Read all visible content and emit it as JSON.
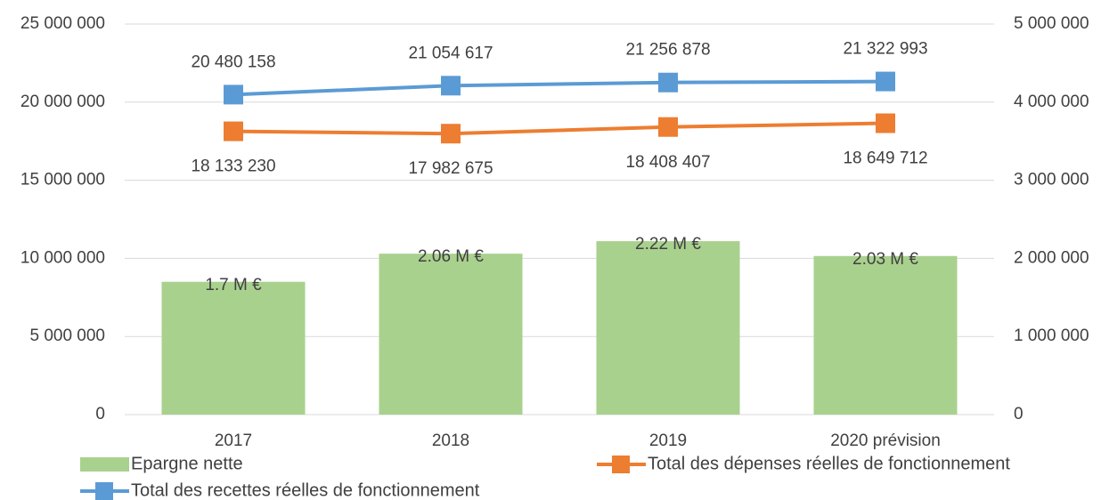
{
  "chart_data": {
    "type": "combo",
    "categories": [
      "2017",
      "2018",
      "2019",
      "2020 prévision"
    ],
    "series": [
      {
        "name": "Epargne nette",
        "type": "bar",
        "axis": "y2",
        "color": "#a9d18e",
        "values": [
          1700000,
          2060000,
          2220000,
          2030000
        ],
        "value_labels": [
          "1.7 M €",
          "2.06 M €",
          "2.22 M €",
          "2.03 M €"
        ]
      },
      {
        "name": "Total des dépenses réelles de fonctionnement",
        "type": "line",
        "axis": "y",
        "color": "#ed7d31",
        "label_position": "below",
        "values": [
          18133230,
          17982675,
          18408407,
          18649712
        ],
        "value_labels": [
          "18 133 230",
          "17 982 675",
          "18 408 407",
          "18 649 712"
        ]
      },
      {
        "name": "Total des recettes réelles de fonctionnement",
        "type": "line",
        "axis": "y",
        "color": "#5b9bd5",
        "label_position": "above",
        "values": [
          20480158,
          21054617,
          21256878,
          21322993
        ],
        "value_labels": [
          "20 480 158",
          "21 054 617",
          "21 256 878",
          "21 322 993"
        ]
      }
    ],
    "ylim": [
      0,
      25000000
    ],
    "yticks": [
      0,
      {
        "value": 5000000,
        "label": "5 000 000"
      },
      {
        "value": 10000000,
        "label": "10 000 000"
      },
      {
        "value": 15000000,
        "label": "15 000 000"
      },
      {
        "value": 20000000,
        "label": "20 000 000"
      },
      {
        "value": 25000000,
        "label": "25 000 000"
      }
    ],
    "y2lim": [
      0,
      5000000
    ],
    "y2ticks": [
      0,
      {
        "value": 1000000,
        "label": "1 000 000"
      },
      {
        "value": 2000000,
        "label": "2 000 000"
      },
      {
        "value": 3000000,
        "label": "3 000 000"
      },
      {
        "value": 4000000,
        "label": "4 000 000"
      },
      {
        "value": 5000000,
        "label": "5 000 000"
      }
    ],
    "grid": true,
    "legend": "bottom"
  }
}
